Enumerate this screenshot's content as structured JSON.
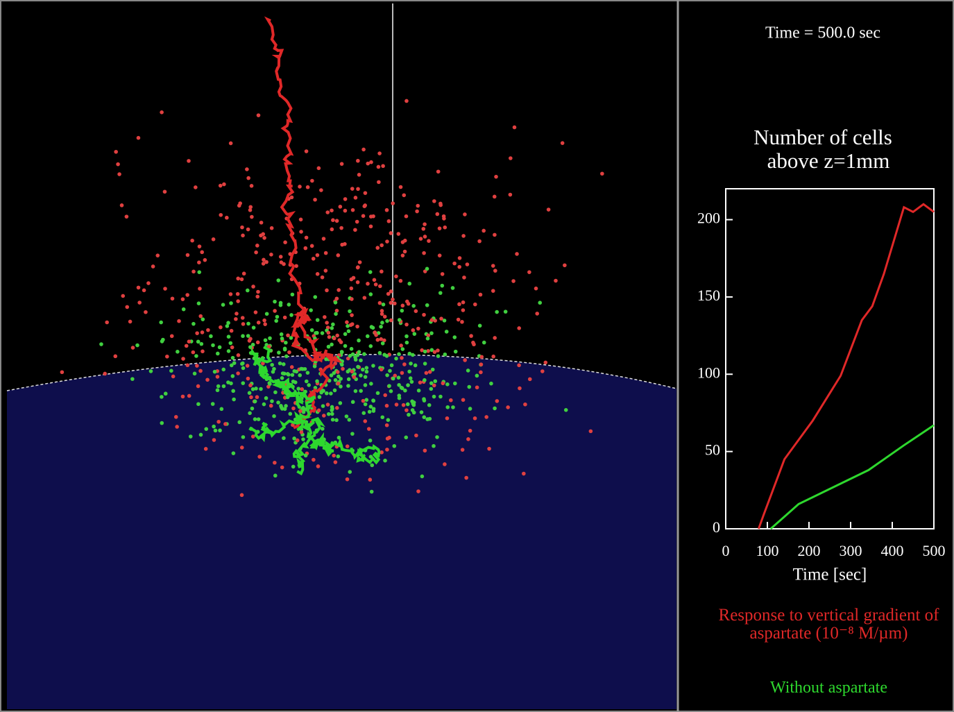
{
  "chart_data": {
    "type": "line",
    "annotation": "Time = 500.0 sec",
    "title": [
      "Number of cells",
      "above z=1mm"
    ],
    "x_label": "Time [sec]",
    "xlim": [
      0,
      500
    ],
    "xticks": [
      0,
      100,
      200,
      300,
      400,
      500
    ],
    "ylim": [
      0,
      220
    ],
    "yticks": [
      0,
      50,
      100,
      150,
      200
    ],
    "series": [
      {
        "name": "Response to vertical gradient of aspartate (10⁻⁸ M/µm)",
        "color": "#e02828",
        "x": [
          79,
          91,
          141,
          209,
          276,
          327,
          352,
          380,
          428,
          450,
          475,
          500
        ],
        "values": [
          0,
          9,
          45,
          70,
          99,
          135,
          144,
          165,
          208,
          205,
          210,
          205
        ]
      },
      {
        "name": "Without aspartate",
        "color": "#2ed82e",
        "x": [
          108,
          175,
          259,
          343,
          428,
          500
        ],
        "values": [
          0,
          16,
          27,
          38,
          54,
          67
        ]
      }
    ]
  }
}
